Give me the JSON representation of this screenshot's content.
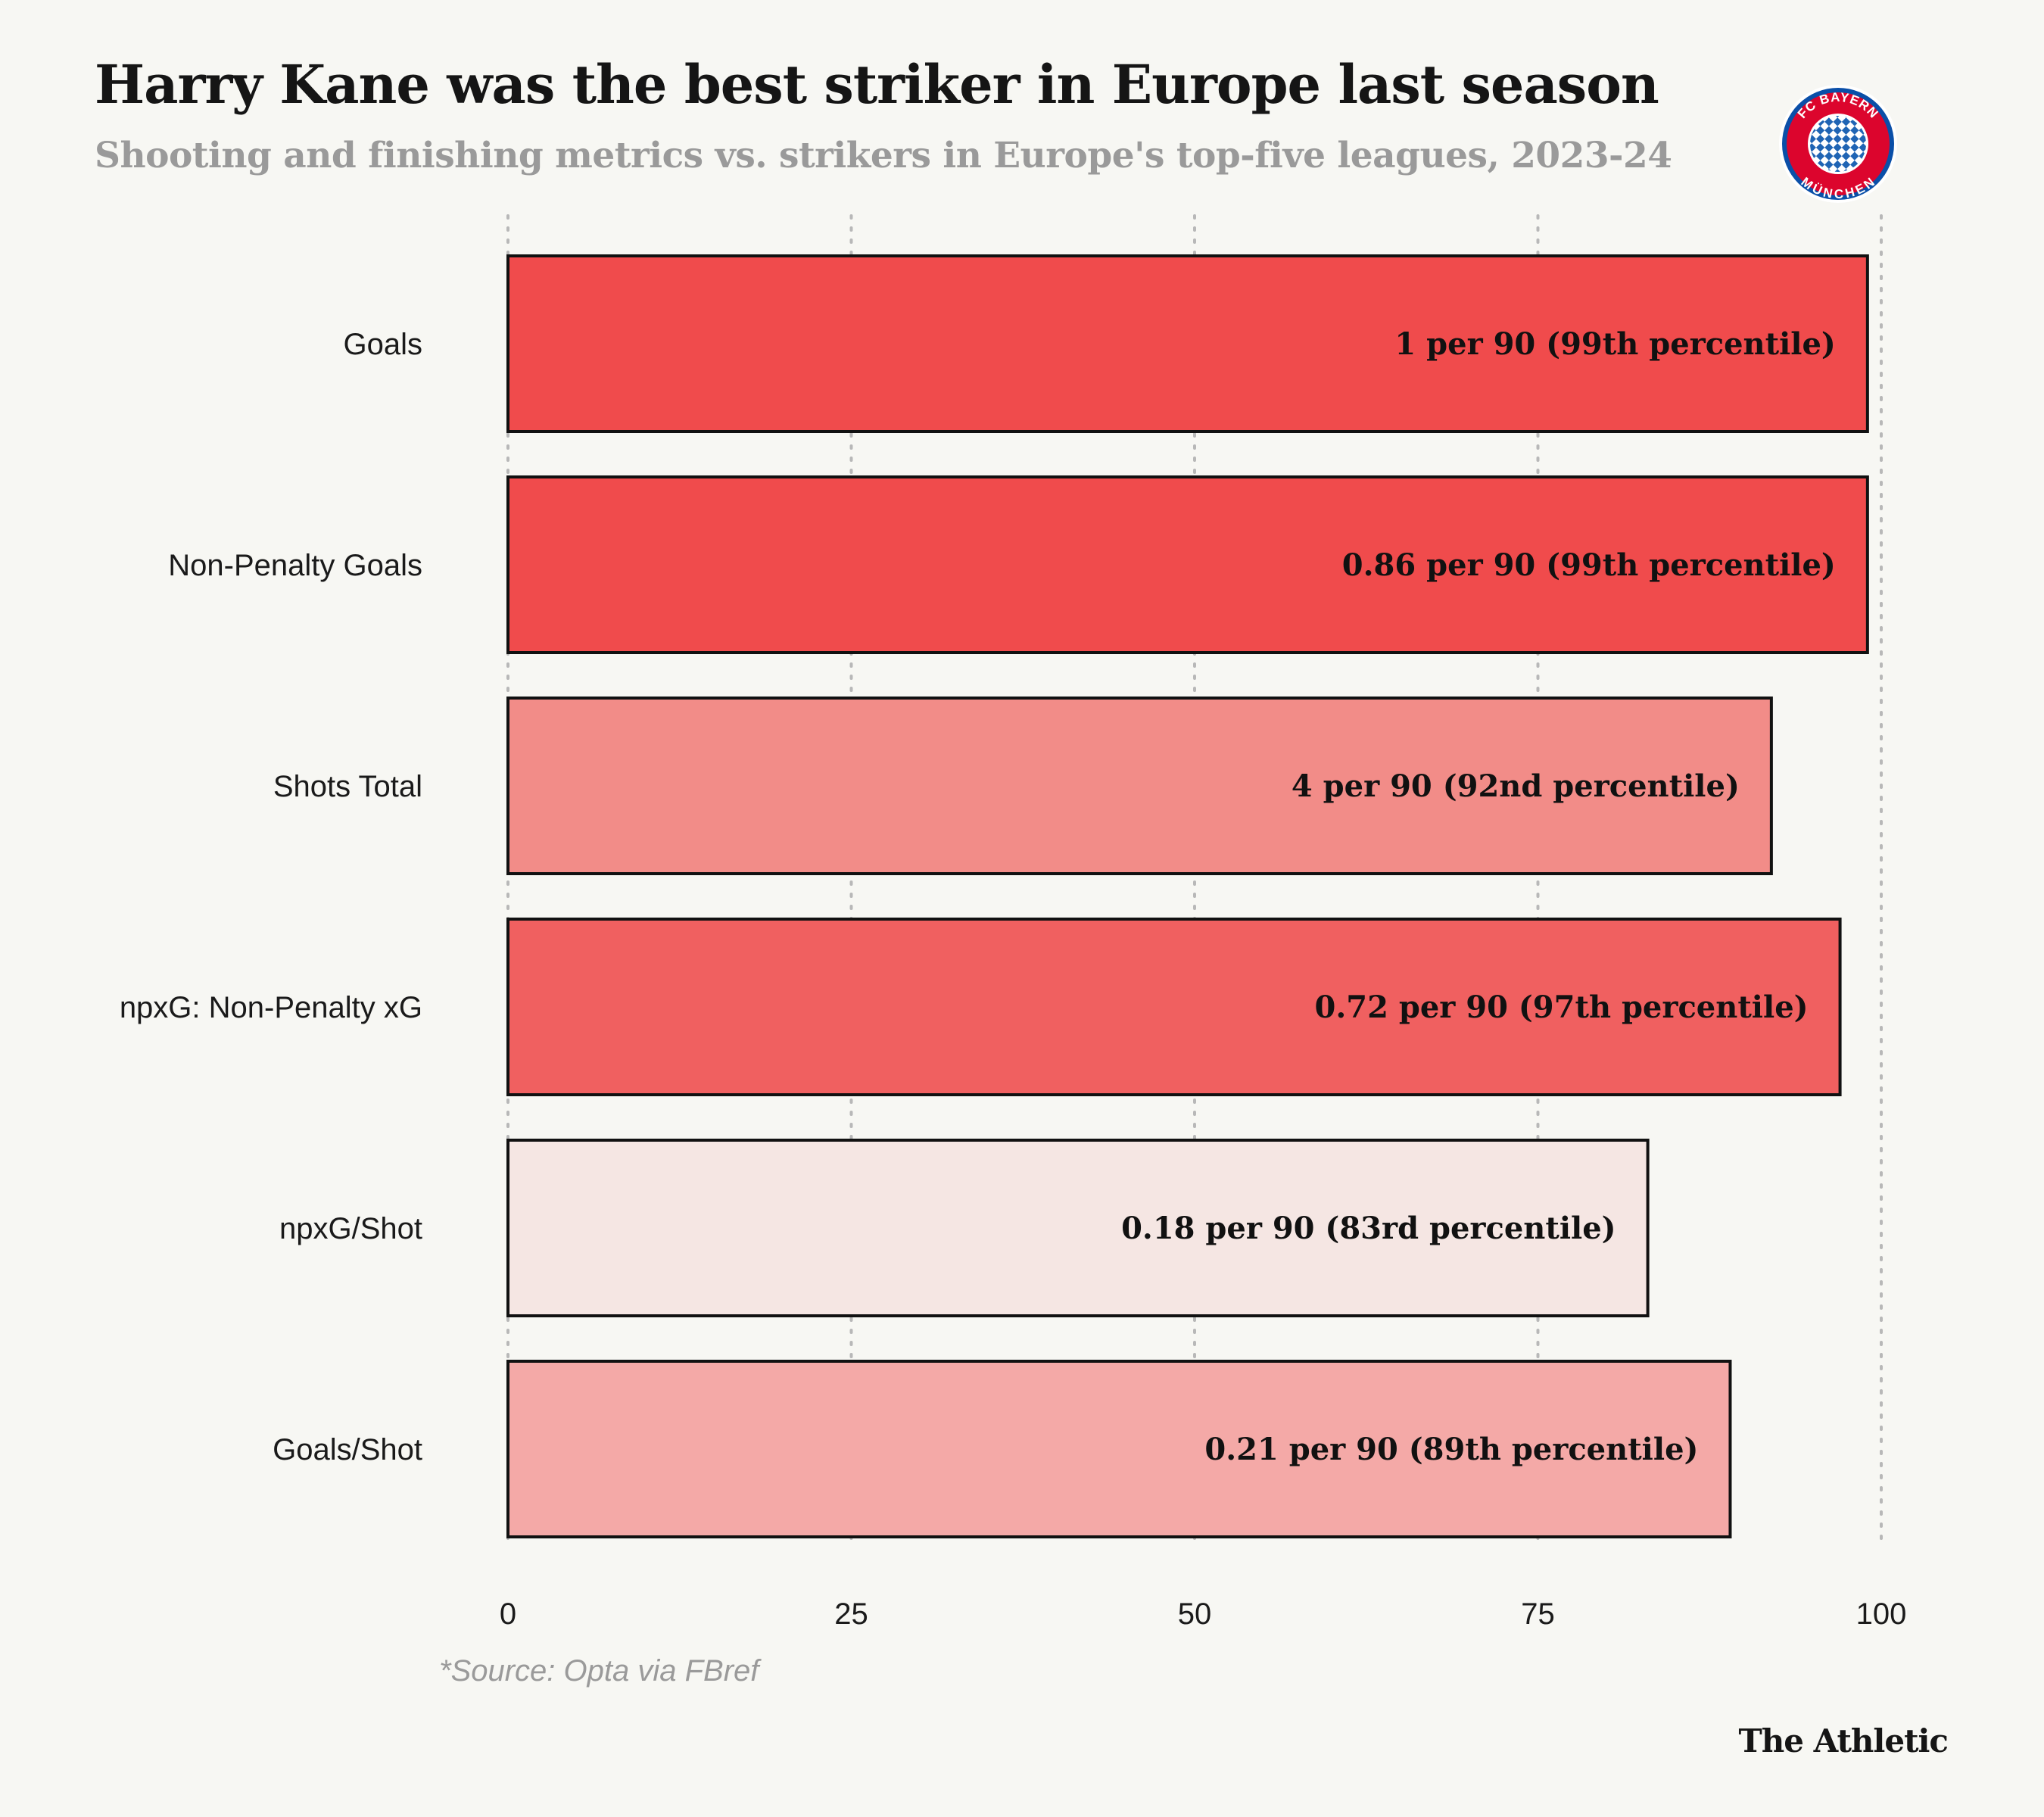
{
  "header": {
    "title": "Harry Kane was the best striker in Europe last season",
    "subtitle": "Shooting and finishing metrics vs. strikers in Europe's top-five leagues, 2023-24"
  },
  "logo": {
    "icon": "fc-bayern-munchen-crest",
    "text": "FC BAYERN MÜNCHEN"
  },
  "chart_data": {
    "type": "bar",
    "orientation": "horizontal",
    "categories": [
      "Goals",
      "Non-Penalty Goals",
      "Shots Total",
      "npxG: Non-Penalty xG",
      "npxG/Shot",
      "Goals/Shot"
    ],
    "values": [
      99,
      99,
      92,
      97,
      83,
      89
    ],
    "data_labels": [
      "1 per 90 (99th percentile)",
      "0.86 per 90 (99th percentile)",
      "4 per 90 (92nd percentile)",
      "0.72 per 90 (97th percentile)",
      "0.18 per 90 (83rd percentile)",
      "0.21 per 90 (89th percentile)"
    ],
    "colors": [
      "#f04b4c",
      "#f04b4c",
      "#f28c88",
      "#f06060",
      "#f5e6e3",
      "#f4a9a7"
    ],
    "xlim": [
      0,
      100
    ],
    "xticks": [
      0,
      25,
      50,
      75,
      100
    ],
    "grid": "vertical dotted"
  },
  "footer": {
    "source": "*Source: Opta via FBref",
    "brand": "The Athletic"
  }
}
